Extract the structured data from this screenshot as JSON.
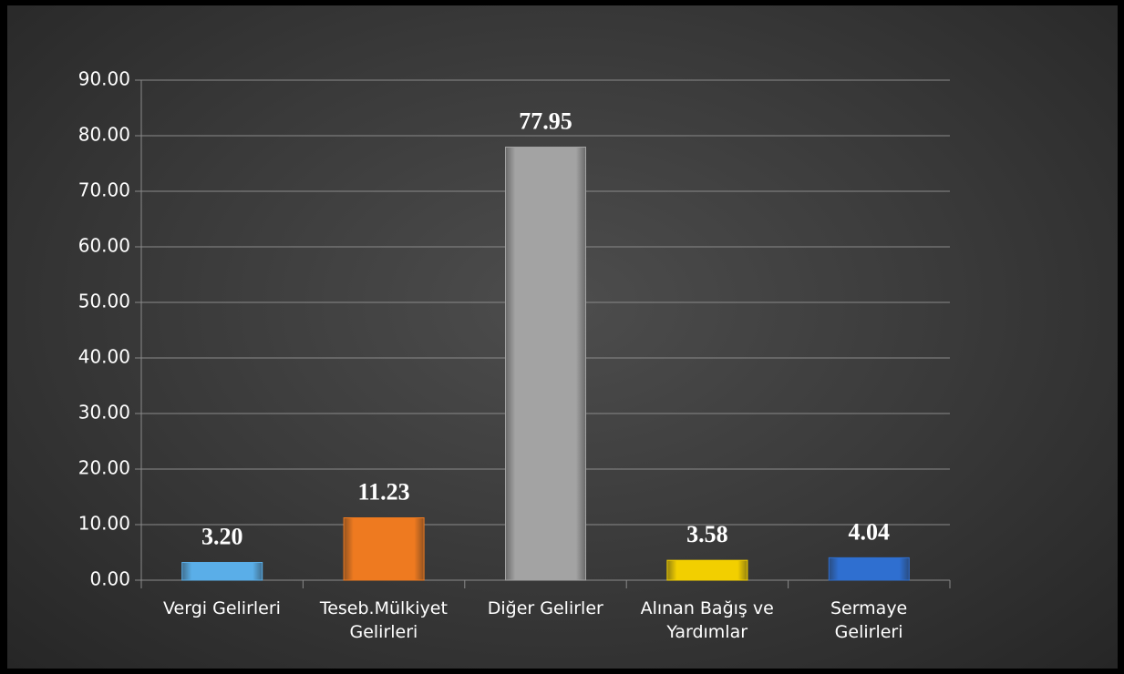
{
  "chart_data": {
    "type": "bar",
    "categories": [
      "Vergi Gelirleri",
      "Teseb.Mülkiyet\nGelirleri",
      "Diğer Gelirler",
      "Alınan Bağış ve\nYardımlar",
      "Sermaye\nGelirleri"
    ],
    "values": [
      3.2,
      11.23,
      77.95,
      3.58,
      4.04
    ],
    "value_labels": [
      "3.20",
      "11.23",
      "77.95",
      "3.58",
      "4.04"
    ],
    "colors": [
      "#5aaee8",
      "#ee7a20",
      "#a3a3a3",
      "#f2cf00",
      "#2f6fd0"
    ],
    "ylim": [
      0,
      90
    ],
    "yticks": [
      {
        "value": 0,
        "label": "0.00"
      },
      {
        "value": 10,
        "label": "10.00"
      },
      {
        "value": 20,
        "label": "20.00"
      },
      {
        "value": 30,
        "label": "30.00"
      },
      {
        "value": 40,
        "label": "40.00"
      },
      {
        "value": 50,
        "label": "50.00"
      },
      {
        "value": 60,
        "label": "60.00"
      },
      {
        "value": 70,
        "label": "70.00"
      },
      {
        "value": 80,
        "label": "80.00"
      },
      {
        "value": 90,
        "label": "90.00"
      }
    ],
    "grid": true
  }
}
